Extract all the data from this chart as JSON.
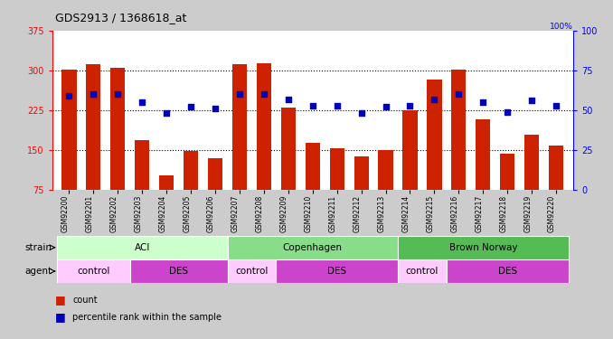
{
  "title": "GDS2913 / 1368618_at",
  "samples": [
    "GSM92200",
    "GSM92201",
    "GSM92202",
    "GSM92203",
    "GSM92204",
    "GSM92205",
    "GSM92206",
    "GSM92207",
    "GSM92208",
    "GSM92209",
    "GSM92210",
    "GSM92211",
    "GSM92212",
    "GSM92213",
    "GSM92214",
    "GSM92215",
    "GSM92216",
    "GSM92217",
    "GSM92218",
    "GSM92219",
    "GSM92220"
  ],
  "counts": [
    302,
    312,
    305,
    168,
    103,
    148,
    135,
    311,
    314,
    230,
    163,
    153,
    138,
    150,
    225,
    283,
    301,
    207,
    143,
    178,
    158
  ],
  "percentiles": [
    59,
    60,
    60,
    55,
    48,
    52,
    51,
    60,
    60,
    57,
    53,
    53,
    48,
    52,
    53,
    57,
    60,
    55,
    49,
    56,
    53
  ],
  "ylim_left": [
    75,
    375
  ],
  "ylim_right": [
    0,
    100
  ],
  "yticks_left": [
    75,
    150,
    225,
    300,
    375
  ],
  "yticks_right": [
    0,
    25,
    50,
    75,
    100
  ],
  "bar_color": "#cc2200",
  "dot_color": "#0000bb",
  "plot_bg": "#ffffff",
  "fig_bg": "#cccccc",
  "strain_groups": [
    {
      "label": "ACI",
      "start": 0,
      "end": 6,
      "color": "#ccffcc"
    },
    {
      "label": "Copenhagen",
      "start": 7,
      "end": 13,
      "color": "#88dd88"
    },
    {
      "label": "Brown Norway",
      "start": 14,
      "end": 20,
      "color": "#55bb55"
    }
  ],
  "agent_groups": [
    {
      "label": "control",
      "start": 0,
      "end": 2,
      "color": "#ffccff"
    },
    {
      "label": "DES",
      "start": 3,
      "end": 6,
      "color": "#cc44cc"
    },
    {
      "label": "control",
      "start": 7,
      "end": 8,
      "color": "#ffccff"
    },
    {
      "label": "DES",
      "start": 9,
      "end": 13,
      "color": "#cc44cc"
    },
    {
      "label": "control",
      "start": 14,
      "end": 15,
      "color": "#ffccff"
    },
    {
      "label": "DES",
      "start": 16,
      "end": 20,
      "color": "#cc44cc"
    }
  ],
  "legend_count_color": "#cc2200",
  "legend_dot_color": "#0000bb",
  "grid_lines": [
    150,
    225,
    300
  ]
}
